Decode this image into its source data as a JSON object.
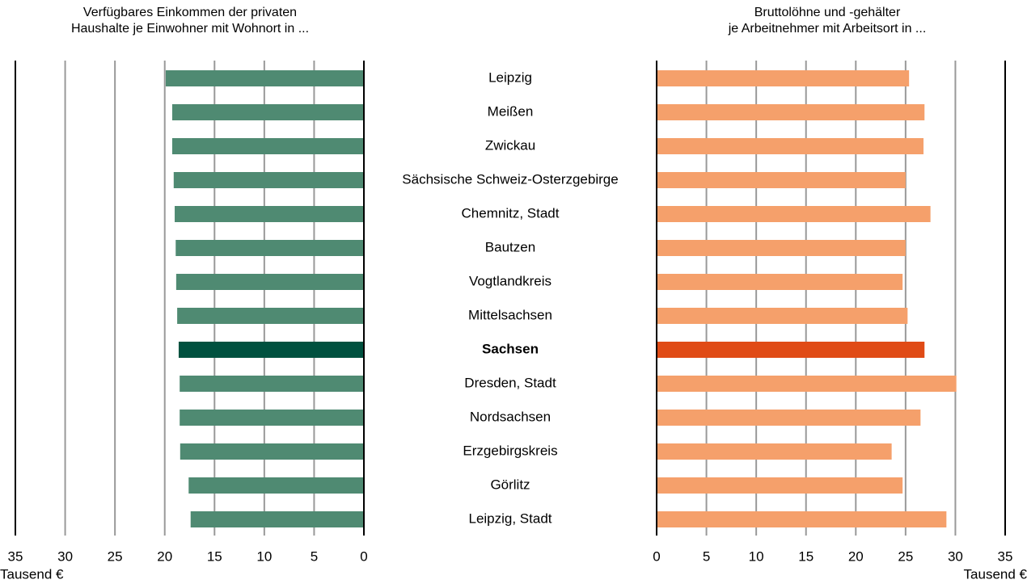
{
  "chart_data": {
    "type": "butterfly",
    "categories": [
      "Leipzig",
      "Meißen",
      "Zwickau",
      "Sächsische Schweiz-Osterzgebirge",
      "Chemnitz, Stadt",
      "Bautzen",
      "Vogtlandkreis",
      "Mittelsachsen",
      "Sachsen",
      "Dresden, Stadt",
      "Nordsachsen",
      "Erzgebirgskreis",
      "Görlitz",
      "Leipzig, Stadt"
    ],
    "highlight_index": 8,
    "series": [
      {
        "name": "Verfügbares Einkommen der privaten\nHaushalte je Einwohner mit Wohnort in ...",
        "color": "#4f8a72",
        "highlight_color": "#00513f",
        "reversed": true,
        "values": [
          19.9,
          19.25,
          19.25,
          19.1,
          19.0,
          18.9,
          18.85,
          18.75,
          18.6,
          18.5,
          18.5,
          18.45,
          17.6,
          17.4
        ],
        "xlim": [
          0,
          35
        ],
        "xticks": [
          0,
          5,
          10,
          15,
          20,
          25,
          30,
          35
        ],
        "xlabel": "Tausend €"
      },
      {
        "name": "Bruttolöhne und -gehälter\nje Arbeitnehmer mit Arbeitsort in ...",
        "color": "#f5a06b",
        "highlight_color": "#e04b16",
        "reversed": false,
        "values": [
          25.35,
          26.9,
          26.8,
          25.0,
          27.5,
          25.0,
          24.7,
          25.2,
          26.9,
          30.1,
          26.5,
          23.6,
          24.7,
          29.1
        ],
        "xlim": [
          0,
          35
        ],
        "xticks": [
          0,
          5,
          10,
          15,
          20,
          25,
          30,
          35
        ],
        "xlabel": "Tausend €"
      }
    ]
  }
}
